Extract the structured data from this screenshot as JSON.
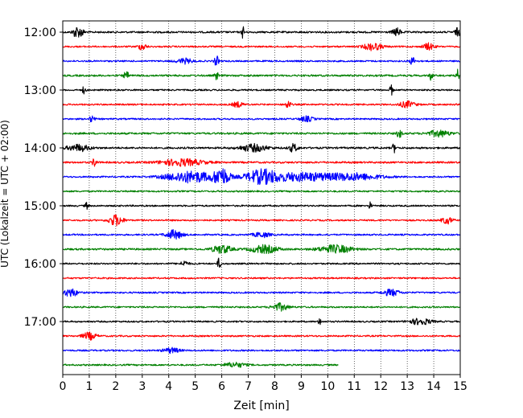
{
  "chart_data": {
    "type": "line",
    "xlabel": "Zeit  [min]",
    "ylabel": "UTC (Lokalzeit = UTC + 02:00)",
    "xlim": [
      0,
      15
    ],
    "x_ticks": [
      0,
      1,
      2,
      3,
      4,
      5,
      6,
      7,
      8,
      9,
      10,
      11,
      12,
      13,
      14,
      15
    ],
    "x_tick_labels": [
      "0",
      "1",
      "2",
      "3",
      "4",
      "5",
      "6",
      "7",
      "8",
      "9",
      "10",
      "11",
      "12",
      "13",
      "14",
      "15"
    ],
    "y_tick_labels": [
      "12:00",
      "13:00",
      "14:00",
      "15:00",
      "16:00",
      "17:00"
    ],
    "y_tick_rows": [
      0,
      4,
      8,
      12,
      16,
      20
    ],
    "grid": "vertical-dotted",
    "row_minutes": 15,
    "colors": [
      "#000000",
      "#ff0000",
      "#0000ff",
      "#008000"
    ],
    "traces": [
      {
        "start": "12:00",
        "color": "#000000",
        "end_min": 15,
        "noise": 0.35,
        "events": [
          [
            0.5,
            2.2,
            0.12
          ],
          [
            0.7,
            1.6,
            0.1
          ],
          [
            6.8,
            2.5,
            0.05
          ],
          [
            12.6,
            1.5,
            0.15
          ],
          [
            14.9,
            1.6,
            0.1
          ]
        ]
      },
      {
        "start": "12:15",
        "color": "#ff0000",
        "end_min": 15,
        "noise": 0.3,
        "events": [
          [
            3.0,
            1.3,
            0.15
          ],
          [
            11.7,
            1.4,
            0.35
          ],
          [
            13.8,
            1.3,
            0.2
          ]
        ]
      },
      {
        "start": "12:30",
        "color": "#0000ff",
        "end_min": 15,
        "noise": 0.3,
        "events": [
          [
            4.6,
            1.0,
            0.3
          ],
          [
            5.8,
            2.0,
            0.08
          ],
          [
            13.2,
            1.5,
            0.1
          ]
        ]
      },
      {
        "start": "12:45",
        "color": "#008000",
        "end_min": 15,
        "noise": 0.35,
        "events": [
          [
            2.4,
            1.4,
            0.1
          ],
          [
            5.8,
            1.8,
            0.06
          ],
          [
            13.9,
            2.2,
            0.05
          ],
          [
            14.9,
            2.4,
            0.05
          ]
        ]
      },
      {
        "start": "13:00",
        "color": "#000000",
        "end_min": 15,
        "noise": 0.3,
        "events": [
          [
            0.8,
            1.5,
            0.06
          ],
          [
            12.4,
            2.4,
            0.05
          ]
        ]
      },
      {
        "start": "13:15",
        "color": "#ff0000",
        "end_min": 15,
        "noise": 0.3,
        "events": [
          [
            6.6,
            1.0,
            0.2
          ],
          [
            8.5,
            1.6,
            0.1
          ],
          [
            13.0,
            1.2,
            0.3
          ]
        ]
      },
      {
        "start": "13:30",
        "color": "#0000ff",
        "end_min": 15,
        "noise": 0.3,
        "events": [
          [
            1.1,
            1.2,
            0.1
          ],
          [
            9.2,
            1.0,
            0.25
          ]
        ]
      },
      {
        "start": "13:45",
        "color": "#008000",
        "end_min": 15,
        "noise": 0.35,
        "events": [
          [
            12.7,
            2.0,
            0.08
          ],
          [
            14.2,
            1.2,
            0.4
          ]
        ]
      },
      {
        "start": "14:00",
        "color": "#000000",
        "end_min": 15,
        "noise": 0.35,
        "events": [
          [
            0.6,
            1.3,
            0.4
          ],
          [
            7.2,
            1.4,
            0.5
          ],
          [
            8.7,
            1.6,
            0.15
          ],
          [
            12.5,
            1.8,
            0.06
          ]
        ]
      },
      {
        "start": "14:15",
        "color": "#ff0000",
        "end_min": 15,
        "noise": 0.35,
        "events": [
          [
            1.2,
            1.7,
            0.08
          ],
          [
            4.5,
            1.3,
            0.8
          ]
        ]
      },
      {
        "start": "14:30",
        "color": "#0000ff",
        "end_min": 15,
        "noise": 0.3,
        "events": [
          [
            4.8,
            2.2,
            0.9
          ],
          [
            6.0,
            3.2,
            0.3
          ],
          [
            7.5,
            2.6,
            0.6
          ],
          [
            9.0,
            1.6,
            1.2
          ],
          [
            11.0,
            1.3,
            1.0
          ]
        ]
      },
      {
        "start": "14:45",
        "color": "#008000",
        "end_min": 15,
        "noise": 0.3,
        "events": []
      },
      {
        "start": "15:00",
        "color": "#000000",
        "end_min": 15,
        "noise": 0.3,
        "events": [
          [
            0.9,
            1.3,
            0.06
          ],
          [
            11.6,
            1.4,
            0.05
          ]
        ]
      },
      {
        "start": "15:15",
        "color": "#ff0000",
        "end_min": 15,
        "noise": 0.3,
        "events": [
          [
            2.0,
            2.2,
            0.25
          ],
          [
            14.5,
            1.3,
            0.2
          ]
        ]
      },
      {
        "start": "15:30",
        "color": "#0000ff",
        "end_min": 15,
        "noise": 0.3,
        "events": [
          [
            4.2,
            1.8,
            0.3
          ],
          [
            7.5,
            1.0,
            0.3
          ]
        ]
      },
      {
        "start": "15:45",
        "color": "#008000",
        "end_min": 15,
        "noise": 0.35,
        "events": [
          [
            6.0,
            1.6,
            0.35
          ],
          [
            7.6,
            1.5,
            0.5
          ],
          [
            10.3,
            1.5,
            0.6
          ]
        ]
      },
      {
        "start": "16:00",
        "color": "#000000",
        "end_min": 15,
        "noise": 0.3,
        "events": [
          [
            5.9,
            2.2,
            0.06
          ],
          [
            4.6,
            1.0,
            0.15
          ]
        ]
      },
      {
        "start": "16:15",
        "color": "#ff0000",
        "end_min": 15,
        "noise": 0.3,
        "events": []
      },
      {
        "start": "16:30",
        "color": "#0000ff",
        "end_min": 15,
        "noise": 0.3,
        "events": [
          [
            0.3,
            1.6,
            0.25
          ],
          [
            12.4,
            1.3,
            0.3
          ]
        ]
      },
      {
        "start": "16:45",
        "color": "#008000",
        "end_min": 15,
        "noise": 0.3,
        "events": [
          [
            8.2,
            1.4,
            0.3
          ]
        ]
      },
      {
        "start": "17:00",
        "color": "#000000",
        "end_min": 15,
        "noise": 0.3,
        "events": [
          [
            9.7,
            1.6,
            0.05
          ],
          [
            13.5,
            1.2,
            0.4
          ]
        ]
      },
      {
        "start": "17:15",
        "color": "#ff0000",
        "end_min": 15,
        "noise": 0.3,
        "events": [
          [
            1.0,
            1.4,
            0.25
          ]
        ]
      },
      {
        "start": "17:30",
        "color": "#0000ff",
        "end_min": 15,
        "noise": 0.3,
        "events": [
          [
            4.1,
            1.0,
            0.3
          ]
        ]
      },
      {
        "start": "17:45",
        "color": "#008000",
        "end_min": 10.4,
        "noise": 0.3,
        "events": [
          [
            6.5,
            0.9,
            0.4
          ]
        ]
      }
    ]
  }
}
